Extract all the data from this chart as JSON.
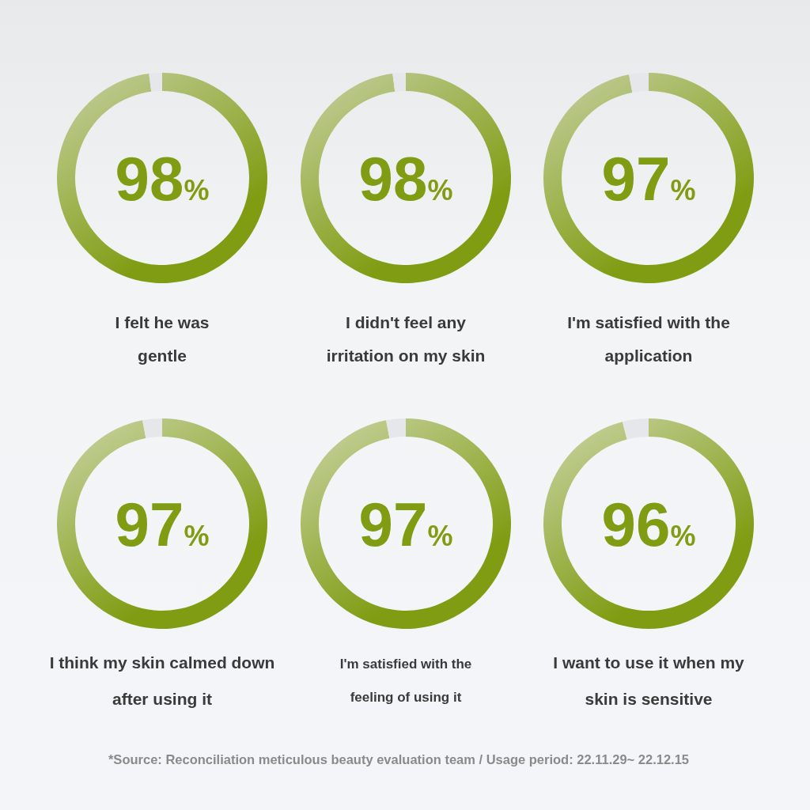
{
  "chart_data": [
    {
      "type": "donut",
      "title": "I felt he was\ngentle",
      "categories": [
        null,
        null
      ],
      "values": [
        98,
        2
      ],
      "colors": [
        "#7f9c12",
        "#e5e7ea"
      ],
      "value_labels": [
        "98%",
        null
      ]
    },
    {
      "type": "donut",
      "title": "I didn't feel any\nirritation on my skin",
      "categories": [
        null,
        null
      ],
      "values": [
        98,
        2
      ],
      "colors": [
        "#7f9c12",
        "#e5e7ea"
      ],
      "value_labels": [
        "98%",
        null
      ]
    },
    {
      "type": "donut",
      "title": "I'm satisfied with the\napplication",
      "categories": [
        null,
        null
      ],
      "values": [
        97,
        3
      ],
      "colors": [
        "#7f9c12",
        "#e5e7ea"
      ],
      "value_labels": [
        "97%",
        null
      ]
    },
    {
      "type": "donut",
      "title": "I think my skin calmed down\nafter using it",
      "categories": [
        null,
        null
      ],
      "values": [
        97,
        3
      ],
      "colors": [
        "#7f9c12",
        "#e5e7ea"
      ],
      "value_labels": [
        "97%",
        null
      ]
    },
    {
      "type": "donut",
      "title": "I'm satisfied with the\nfeeling of using it",
      "categories": [
        null,
        null
      ],
      "values": [
        97,
        3
      ],
      "colors": [
        "#7f9c12",
        "#e5e7ea"
      ],
      "value_labels": [
        "97%",
        null
      ]
    },
    {
      "type": "donut",
      "title": "I want to use it when my\nskin is sensitive",
      "categories": [
        null,
        null
      ],
      "values": [
        96,
        4
      ],
      "colors": [
        "#7f9c12",
        "#e5e7ea"
      ],
      "value_labels": [
        "96%",
        null
      ],
      "annotations": [
        "*Source: Reconciliation meticulous beauty evaluation team / Usage period: 22.11.29~ 22.12.15"
      ]
    }
  ]
}
